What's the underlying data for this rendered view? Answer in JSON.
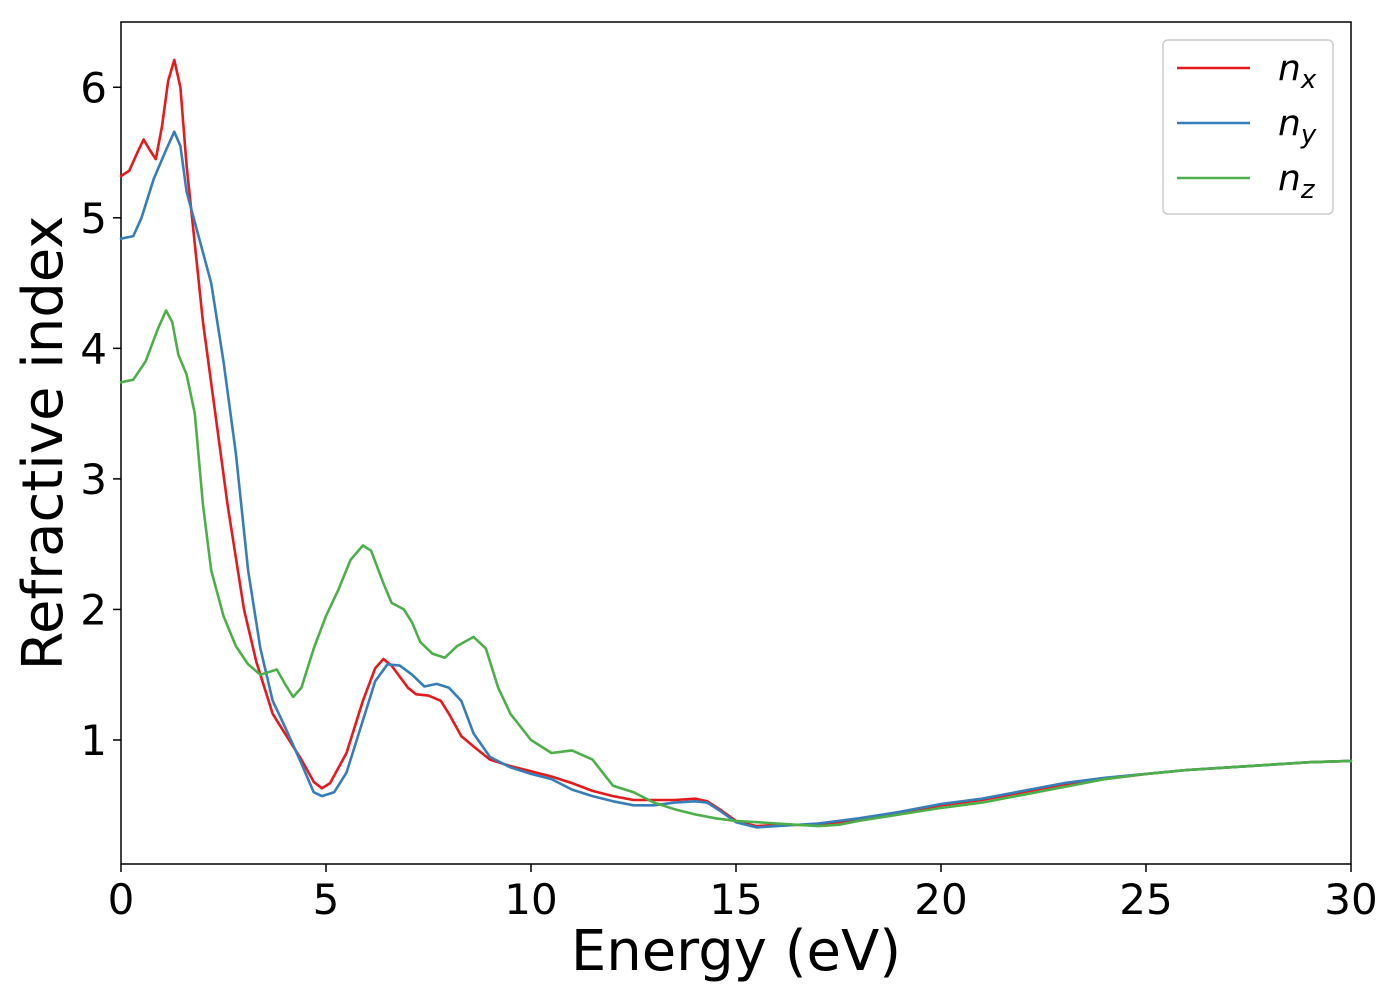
{
  "chart_data": {
    "type": "line",
    "xlabel": "Energy (eV)",
    "ylabel": "Refractive index",
    "xlim": [
      0,
      30
    ],
    "ylim": [
      0.05,
      6.5
    ],
    "xticks": [
      0,
      5,
      10,
      15,
      20,
      25,
      30
    ],
    "yticks": [
      1,
      2,
      3,
      4,
      5,
      6
    ],
    "grid": false,
    "legend_position": "top-right",
    "series": [
      {
        "name": "n",
        "subscript": "x",
        "color": "#e41a1c",
        "points": [
          [
            0,
            5.32
          ],
          [
            0.2,
            5.36
          ],
          [
            0.4,
            5.5
          ],
          [
            0.55,
            5.6
          ],
          [
            0.7,
            5.52
          ],
          [
            0.85,
            5.45
          ],
          [
            1.0,
            5.7
          ],
          [
            1.15,
            6.05
          ],
          [
            1.3,
            6.21
          ],
          [
            1.45,
            6.0
          ],
          [
            1.6,
            5.4
          ],
          [
            1.8,
            4.8
          ],
          [
            2.0,
            4.2
          ],
          [
            2.3,
            3.5
          ],
          [
            2.6,
            2.8
          ],
          [
            3.0,
            2.0
          ],
          [
            3.3,
            1.6
          ],
          [
            3.7,
            1.2
          ],
          [
            4.0,
            1.05
          ],
          [
            4.4,
            0.85
          ],
          [
            4.7,
            0.68
          ],
          [
            4.9,
            0.63
          ],
          [
            5.1,
            0.67
          ],
          [
            5.5,
            0.9
          ],
          [
            5.9,
            1.3
          ],
          [
            6.2,
            1.55
          ],
          [
            6.4,
            1.62
          ],
          [
            6.6,
            1.57
          ],
          [
            7.0,
            1.4
          ],
          [
            7.2,
            1.35
          ],
          [
            7.5,
            1.34
          ],
          [
            7.8,
            1.3
          ],
          [
            8.0,
            1.2
          ],
          [
            8.3,
            1.03
          ],
          [
            8.6,
            0.95
          ],
          [
            9.0,
            0.85
          ],
          [
            9.5,
            0.8
          ],
          [
            10.0,
            0.76
          ],
          [
            10.5,
            0.72
          ],
          [
            11.0,
            0.67
          ],
          [
            11.5,
            0.61
          ],
          [
            12.0,
            0.57
          ],
          [
            12.5,
            0.54
          ],
          [
            13.0,
            0.54
          ],
          [
            13.5,
            0.54
          ],
          [
            14.0,
            0.55
          ],
          [
            14.3,
            0.53
          ],
          [
            14.6,
            0.47
          ],
          [
            15.0,
            0.38
          ],
          [
            15.5,
            0.34
          ],
          [
            16.0,
            0.35
          ],
          [
            17.0,
            0.35
          ],
          [
            18.0,
            0.39
          ],
          [
            19.0,
            0.44
          ],
          [
            20.0,
            0.5
          ],
          [
            21.0,
            0.54
          ],
          [
            22.0,
            0.6
          ],
          [
            23.0,
            0.66
          ],
          [
            24.0,
            0.7
          ],
          [
            25.0,
            0.74
          ],
          [
            26.0,
            0.77
          ],
          [
            27.0,
            0.79
          ],
          [
            28.0,
            0.81
          ],
          [
            29.0,
            0.83
          ],
          [
            30.0,
            0.84
          ]
        ]
      },
      {
        "name": "n",
        "subscript": "y",
        "color": "#377eb8",
        "points": [
          [
            0,
            4.84
          ],
          [
            0.3,
            4.86
          ],
          [
            0.5,
            5.0
          ],
          [
            0.8,
            5.3
          ],
          [
            1.1,
            5.52
          ],
          [
            1.3,
            5.66
          ],
          [
            1.45,
            5.55
          ],
          [
            1.6,
            5.2
          ],
          [
            1.9,
            4.85
          ],
          [
            2.2,
            4.5
          ],
          [
            2.5,
            3.9
          ],
          [
            2.8,
            3.2
          ],
          [
            3.1,
            2.3
          ],
          [
            3.4,
            1.7
          ],
          [
            3.7,
            1.3
          ],
          [
            4.0,
            1.1
          ],
          [
            4.4,
            0.82
          ],
          [
            4.7,
            0.6
          ],
          [
            4.9,
            0.57
          ],
          [
            5.2,
            0.6
          ],
          [
            5.5,
            0.75
          ],
          [
            5.9,
            1.15
          ],
          [
            6.2,
            1.45
          ],
          [
            6.5,
            1.58
          ],
          [
            6.8,
            1.57
          ],
          [
            7.1,
            1.5
          ],
          [
            7.4,
            1.41
          ],
          [
            7.7,
            1.43
          ],
          [
            8.0,
            1.4
          ],
          [
            8.3,
            1.3
          ],
          [
            8.6,
            1.05
          ],
          [
            9.0,
            0.87
          ],
          [
            9.5,
            0.79
          ],
          [
            10.0,
            0.74
          ],
          [
            10.5,
            0.7
          ],
          [
            11.0,
            0.62
          ],
          [
            11.5,
            0.57
          ],
          [
            12.0,
            0.53
          ],
          [
            12.5,
            0.5
          ],
          [
            13.0,
            0.5
          ],
          [
            13.5,
            0.52
          ],
          [
            14.0,
            0.53
          ],
          [
            14.3,
            0.52
          ],
          [
            14.6,
            0.46
          ],
          [
            15.0,
            0.37
          ],
          [
            15.5,
            0.33
          ],
          [
            16.0,
            0.34
          ],
          [
            17.0,
            0.36
          ],
          [
            18.0,
            0.4
          ],
          [
            19.0,
            0.45
          ],
          [
            20.0,
            0.51
          ],
          [
            21.0,
            0.55
          ],
          [
            22.0,
            0.61
          ],
          [
            23.0,
            0.67
          ],
          [
            24.0,
            0.71
          ],
          [
            25.0,
            0.74
          ],
          [
            26.0,
            0.77
          ],
          [
            27.0,
            0.79
          ],
          [
            28.0,
            0.81
          ],
          [
            29.0,
            0.83
          ],
          [
            30.0,
            0.84
          ]
        ]
      },
      {
        "name": "n",
        "subscript": "z",
        "color": "#4daf4a",
        "points": [
          [
            0,
            3.74
          ],
          [
            0.3,
            3.76
          ],
          [
            0.6,
            3.9
          ],
          [
            0.9,
            4.15
          ],
          [
            1.1,
            4.29
          ],
          [
            1.25,
            4.2
          ],
          [
            1.4,
            3.95
          ],
          [
            1.6,
            3.8
          ],
          [
            1.8,
            3.5
          ],
          [
            2.0,
            2.8
          ],
          [
            2.2,
            2.3
          ],
          [
            2.5,
            1.95
          ],
          [
            2.8,
            1.72
          ],
          [
            3.1,
            1.58
          ],
          [
            3.4,
            1.5
          ],
          [
            3.6,
            1.52
          ],
          [
            3.8,
            1.54
          ],
          [
            4.0,
            1.43
          ],
          [
            4.2,
            1.33
          ],
          [
            4.4,
            1.4
          ],
          [
            4.7,
            1.7
          ],
          [
            5.0,
            1.95
          ],
          [
            5.3,
            2.15
          ],
          [
            5.6,
            2.38
          ],
          [
            5.9,
            2.49
          ],
          [
            6.1,
            2.45
          ],
          [
            6.4,
            2.2
          ],
          [
            6.6,
            2.05
          ],
          [
            6.9,
            2.0
          ],
          [
            7.1,
            1.9
          ],
          [
            7.3,
            1.75
          ],
          [
            7.6,
            1.66
          ],
          [
            7.9,
            1.63
          ],
          [
            8.2,
            1.72
          ],
          [
            8.6,
            1.79
          ],
          [
            8.9,
            1.7
          ],
          [
            9.2,
            1.4
          ],
          [
            9.5,
            1.2
          ],
          [
            10.0,
            1.0
          ],
          [
            10.5,
            0.9
          ],
          [
            11.0,
            0.92
          ],
          [
            11.5,
            0.85
          ],
          [
            12.0,
            0.65
          ],
          [
            12.5,
            0.6
          ],
          [
            13.0,
            0.52
          ],
          [
            13.5,
            0.47
          ],
          [
            14.0,
            0.43
          ],
          [
            14.5,
            0.4
          ],
          [
            15.0,
            0.38
          ],
          [
            15.5,
            0.37
          ],
          [
            16.0,
            0.36
          ],
          [
            16.5,
            0.35
          ],
          [
            17.0,
            0.34
          ],
          [
            17.5,
            0.35
          ],
          [
            18.0,
            0.38
          ],
          [
            19.0,
            0.43
          ],
          [
            20.0,
            0.48
          ],
          [
            21.0,
            0.52
          ],
          [
            22.0,
            0.58
          ],
          [
            23.0,
            0.64
          ],
          [
            24.0,
            0.7
          ],
          [
            25.0,
            0.74
          ],
          [
            26.0,
            0.77
          ],
          [
            27.0,
            0.79
          ],
          [
            28.0,
            0.81
          ],
          [
            29.0,
            0.83
          ],
          [
            30.0,
            0.84
          ]
        ]
      }
    ]
  }
}
